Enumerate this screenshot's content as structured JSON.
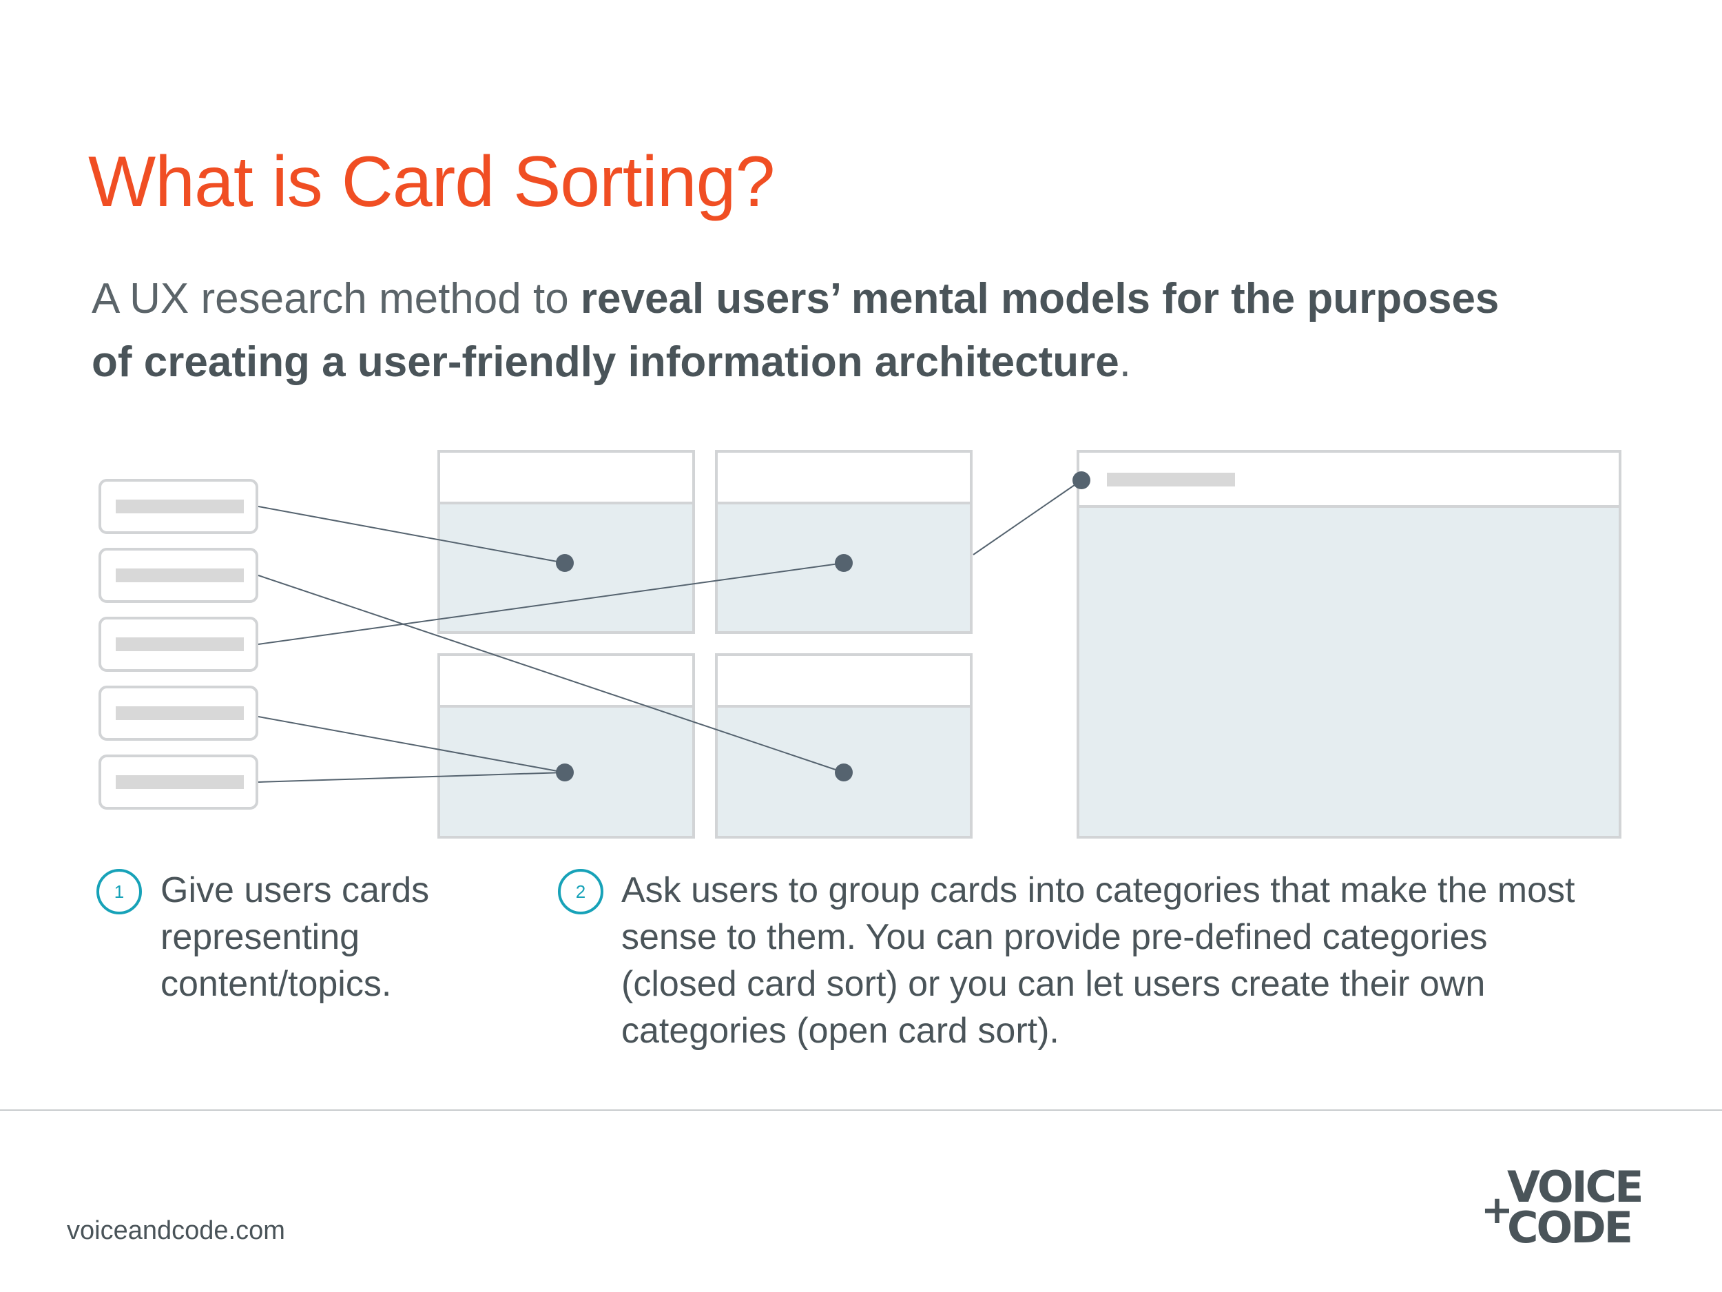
{
  "title": "What is Card Sorting?",
  "subtitle": {
    "intro": "A UX research method to ",
    "emphasis": "reveal users’ mental models for the purposes of creating a user-friendly information architecture",
    "end": "."
  },
  "steps": [
    {
      "number": "1",
      "text": "Give users cards representing content/topics."
    },
    {
      "number": "2",
      "text": "Ask users to group cards into categories that make the most sense to them. You can provide pre-defined categories (closed card sort) or you can let users create their own categories (open card sort)."
    }
  ],
  "footer": {
    "website": "voiceandcode.com"
  },
  "logo": {
    "line1": "VOICE",
    "line2": "CODE",
    "mark": "+"
  },
  "colors": {
    "title": "#f04e23",
    "text": "#4a5459",
    "accent": "#17a2b8",
    "line": "#55636f",
    "box_fill": "#e5edf0",
    "box_border": "#d2d4d6",
    "placeholder": "#d8d8d8"
  }
}
